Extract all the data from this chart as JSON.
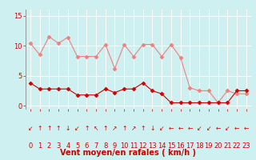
{
  "x": [
    0,
    1,
    2,
    3,
    4,
    5,
    6,
    7,
    8,
    9,
    10,
    11,
    12,
    13,
    14,
    15,
    16,
    17,
    18,
    19,
    20,
    21,
    22,
    23
  ],
  "rafales": [
    10.4,
    8.5,
    11.5,
    10.4,
    11.4,
    8.2,
    8.2,
    8.2,
    10.2,
    6.2,
    10.2,
    8.2,
    10.2,
    10.2,
    8.2,
    10.2,
    8.0,
    3.0,
    2.5,
    2.5,
    0.5,
    2.5,
    2.0,
    2.0
  ],
  "moyen": [
    3.8,
    2.8,
    2.8,
    2.8,
    2.8,
    1.8,
    1.8,
    1.8,
    2.8,
    2.2,
    2.8,
    2.8,
    3.8,
    2.5,
    2.0,
    0.5,
    0.5,
    0.5,
    0.5,
    0.5,
    0.5,
    0.5,
    2.5,
    2.5
  ],
  "background_color": "#cef0f0",
  "grid_color": "#ffffff",
  "line_color_rafales": "#f08080",
  "line_color_moyen": "#cc0000",
  "xlabel": "Vent moyen/en rafales ( km/h )",
  "ylim": [
    -0.5,
    16
  ],
  "xlim": [
    -0.5,
    23.5
  ],
  "yticks": [
    0,
    5,
    10,
    15
  ],
  "xticks": [
    0,
    1,
    2,
    3,
    4,
    5,
    6,
    7,
    8,
    9,
    10,
    11,
    12,
    13,
    14,
    15,
    16,
    17,
    18,
    19,
    20,
    21,
    22,
    23
  ],
  "xlabel_color": "#cc0000",
  "tick_color": "#cc0000",
  "font_size_label": 7,
  "font_size_tick": 6,
  "arrow_symbols": [
    "↙",
    "↑",
    "↑",
    "↑",
    "↓",
    "↙",
    "↑",
    "↖",
    "↑",
    "↗",
    "↑",
    "↗",
    "↑",
    "↓",
    "↙",
    "←",
    "←",
    "←",
    "↙",
    "↙",
    "←",
    "↙",
    "←",
    "←"
  ]
}
